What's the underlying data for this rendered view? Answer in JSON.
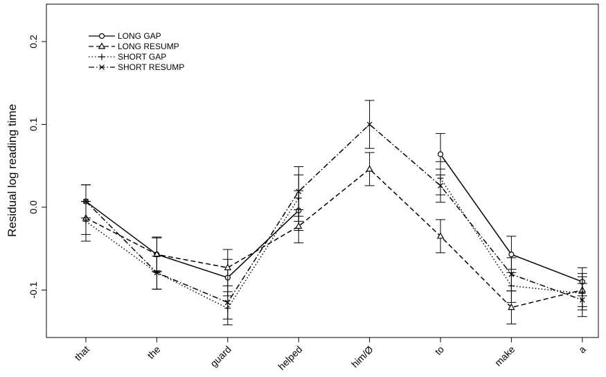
{
  "chart_data": {
    "type": "line",
    "title": "",
    "xlabel": "",
    "ylabel": "Residual log reading time",
    "categories": [
      "that",
      "the",
      "guard",
      "helped",
      "him/Ø",
      "to",
      "make",
      "a"
    ],
    "ylim": [
      -0.16,
      0.24
    ],
    "yticks": [
      -0.1,
      0.0,
      0.1,
      0.2
    ],
    "ytick_labels": [
      "-0.1",
      "0.0",
      "0.1",
      "0.2"
    ],
    "grid": false,
    "legend_position": "top-left",
    "series": [
      {
        "name": "LONG GAP",
        "marker": "circle",
        "line_style": "solid",
        "values": [
          0.007,
          -0.057,
          -0.085,
          -0.004,
          null,
          0.064,
          -0.057,
          -0.09
        ],
        "errors": [
          0.02,
          0.021,
          0.022,
          0.024,
          null,
          0.025,
          0.022,
          0.017
        ]
      },
      {
        "name": "LONG RESUMP",
        "marker": "triangle",
        "line_style": "dashed",
        "values": [
          -0.013,
          -0.057,
          -0.073,
          -0.023,
          0.046,
          -0.035,
          -0.121,
          -0.1
        ],
        "errors": [
          0.02,
          0.02,
          0.022,
          0.02,
          0.02,
          0.02,
          0.02,
          0.02
        ]
      },
      {
        "name": "SHORT GAP",
        "marker": "plus",
        "line_style": "dotted",
        "values": [
          -0.017,
          -0.079,
          -0.122,
          0.011,
          null,
          0.035,
          -0.095,
          -0.104
        ],
        "errors": [
          0.024,
          0.02,
          0.02,
          0.028,
          null,
          0.02,
          0.02,
          0.02
        ]
      },
      {
        "name": "SHORT RESUMP",
        "marker": "cross",
        "line_style": "dashdot",
        "values": [
          0.007,
          -0.079,
          -0.115,
          0.019,
          0.1,
          0.026,
          -0.081,
          -0.112
        ],
        "errors": [
          0.02,
          0.02,
          0.02,
          0.03,
          0.029,
          0.02,
          0.02,
          0.02
        ]
      }
    ]
  }
}
